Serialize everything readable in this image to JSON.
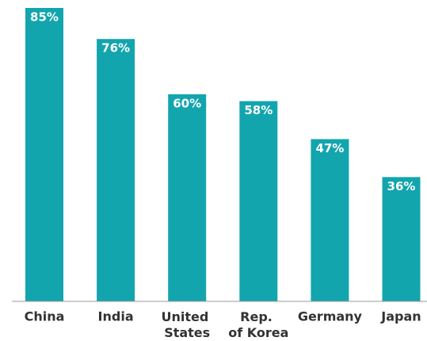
{
  "chart_data": {
    "type": "bar",
    "categories": [
      "China",
      "India",
      "United States",
      "Rep. of Korea",
      "Germany",
      "Japan"
    ],
    "values": [
      85,
      76,
      60,
      58,
      47,
      36
    ],
    "value_labels": [
      "85%",
      "76%",
      "60%",
      "58%",
      "47%",
      "36%"
    ],
    "color": "#13a5ae"
  }
}
